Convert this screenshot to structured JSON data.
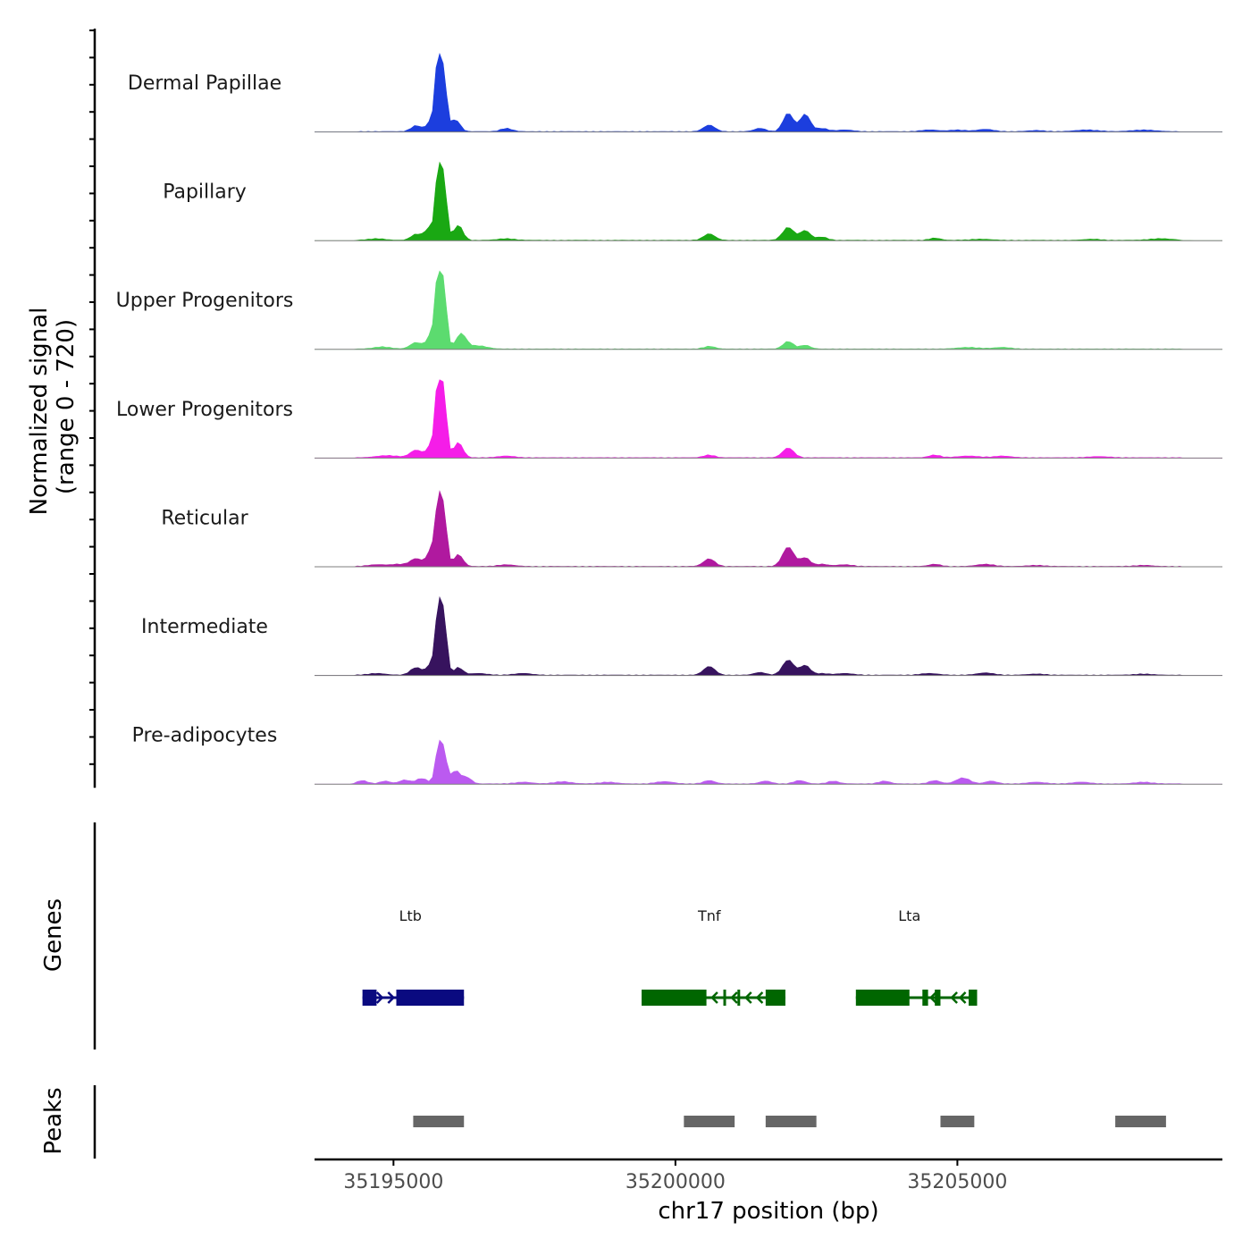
{
  "chart_data": {
    "type": "area",
    "ylabel_line1": "Normalized signal",
    "ylabel_line2": "(range 0 - 720)",
    "xlabel": "chr17 position (bp)",
    "ylim": [
      0,
      720
    ],
    "xlim": [
      35193600,
      35209700
    ],
    "x_ticks": [
      {
        "value": 35195000,
        "label": "35195000"
      },
      {
        "value": 35200000,
        "label": "35200000"
      },
      {
        "value": 35205000,
        "label": "35205000"
      }
    ],
    "genes_label": "Genes",
    "peaks_label": "Peaks",
    "tracks": [
      {
        "name": "Dermal Papillae",
        "color": "#1c3ede",
        "peaks": [
          [
            35195400,
            55,
            90
          ],
          [
            35195700,
            120,
            90
          ],
          [
            35195800,
            720,
            50
          ],
          [
            35195900,
            450,
            50
          ],
          [
            35196100,
            110,
            80
          ],
          [
            35197000,
            30,
            100
          ],
          [
            35200600,
            60,
            100
          ],
          [
            35201500,
            30,
            100
          ],
          [
            35202000,
            170,
            90
          ],
          [
            35202300,
            160,
            90
          ],
          [
            35202600,
            30,
            100
          ],
          [
            35203000,
            15,
            150
          ],
          [
            35204500,
            15,
            150
          ],
          [
            35205000,
            15,
            150
          ],
          [
            35205500,
            20,
            150
          ],
          [
            35206400,
            10,
            150
          ],
          [
            35207300,
            15,
            200
          ],
          [
            35208300,
            15,
            200
          ]
        ]
      },
      {
        "name": "Papillary",
        "color": "#1aa813",
        "peaks": [
          [
            35194700,
            15,
            150
          ],
          [
            35195400,
            55,
            90
          ],
          [
            35195650,
            120,
            90
          ],
          [
            35195800,
            690,
            50
          ],
          [
            35195900,
            500,
            50
          ],
          [
            35196150,
            140,
            80
          ],
          [
            35197000,
            15,
            150
          ],
          [
            35200600,
            60,
            100
          ],
          [
            35202000,
            120,
            100
          ],
          [
            35202300,
            90,
            90
          ],
          [
            35202600,
            30,
            100
          ],
          [
            35204600,
            20,
            100
          ],
          [
            35205400,
            10,
            200
          ],
          [
            35207400,
            10,
            150
          ],
          [
            35208600,
            15,
            200
          ]
        ]
      },
      {
        "name": "Upper Progenitors",
        "color": "#5cdb6f",
        "peaks": [
          [
            35194800,
            20,
            150
          ],
          [
            35195400,
            60,
            100
          ],
          [
            35195700,
            160,
            90
          ],
          [
            35195800,
            700,
            50
          ],
          [
            35195900,
            500,
            50
          ],
          [
            35196200,
            140,
            90
          ],
          [
            35196500,
            30,
            150
          ],
          [
            35200600,
            25,
            100
          ],
          [
            35202000,
            70,
            90
          ],
          [
            35202300,
            35,
            90
          ],
          [
            35205200,
            15,
            200
          ],
          [
            35205800,
            15,
            150
          ]
        ]
      },
      {
        "name": "Lower Progenitors",
        "color": "#f51de8",
        "peaks": [
          [
            35194900,
            20,
            200
          ],
          [
            35195400,
            70,
            100
          ],
          [
            35195700,
            140,
            90
          ],
          [
            35195800,
            730,
            50
          ],
          [
            35195900,
            520,
            50
          ],
          [
            35196150,
            140,
            80
          ],
          [
            35197000,
            15,
            150
          ],
          [
            35200600,
            25,
            100
          ],
          [
            35202000,
            90,
            100
          ],
          [
            35204600,
            25,
            100
          ],
          [
            35205200,
            15,
            200
          ],
          [
            35205800,
            15,
            150
          ],
          [
            35207500,
            10,
            200
          ]
        ]
      },
      {
        "name": "Reticular",
        "color": "#b0199f",
        "peaks": [
          [
            35194700,
            15,
            150
          ],
          [
            35195100,
            20,
            150
          ],
          [
            35195400,
            70,
            100
          ],
          [
            35195700,
            180,
            90
          ],
          [
            35195800,
            530,
            50
          ],
          [
            35195900,
            470,
            50
          ],
          [
            35196150,
            110,
            80
          ],
          [
            35197000,
            15,
            150
          ],
          [
            35200600,
            70,
            100
          ],
          [
            35202000,
            180,
            100
          ],
          [
            35202300,
            80,
            90
          ],
          [
            35202600,
            20,
            100
          ],
          [
            35203000,
            15,
            150
          ],
          [
            35204600,
            20,
            100
          ],
          [
            35205500,
            20,
            150
          ],
          [
            35206400,
            10,
            150
          ],
          [
            35208300,
            10,
            150
          ]
        ]
      },
      {
        "name": "Intermediate",
        "color": "#37135e",
        "peaks": [
          [
            35194700,
            15,
            150
          ],
          [
            35195400,
            70,
            100
          ],
          [
            35195700,
            120,
            90
          ],
          [
            35195800,
            590,
            50
          ],
          [
            35195900,
            500,
            50
          ],
          [
            35196150,
            70,
            80
          ],
          [
            35196500,
            15,
            150
          ],
          [
            35197300,
            15,
            150
          ],
          [
            35200600,
            80,
            100
          ],
          [
            35201500,
            25,
            100
          ],
          [
            35202000,
            140,
            100
          ],
          [
            35202300,
            90,
            90
          ],
          [
            35202600,
            15,
            100
          ],
          [
            35203000,
            15,
            150
          ],
          [
            35204500,
            15,
            150
          ],
          [
            35205500,
            20,
            150
          ],
          [
            35206400,
            10,
            150
          ],
          [
            35208300,
            10,
            150
          ]
        ]
      },
      {
        "name": "Pre-adipocytes",
        "color": "#bb5af0",
        "peaks": [
          [
            35194450,
            30,
            90
          ],
          [
            35194850,
            25,
            90
          ],
          [
            35195200,
            35,
            90
          ],
          [
            35195500,
            50,
            100
          ],
          [
            35195800,
            350,
            55
          ],
          [
            35195900,
            260,
            50
          ],
          [
            35196100,
            120,
            80
          ],
          [
            35196300,
            60,
            80
          ],
          [
            35197300,
            15,
            150
          ],
          [
            35198000,
            20,
            150
          ],
          [
            35198800,
            15,
            150
          ],
          [
            35199800,
            20,
            150
          ],
          [
            35200600,
            30,
            100
          ],
          [
            35201600,
            25,
            100
          ],
          [
            35202200,
            30,
            100
          ],
          [
            35202800,
            25,
            100
          ],
          [
            35203700,
            25,
            100
          ],
          [
            35204600,
            30,
            100
          ],
          [
            35205100,
            55,
            120
          ],
          [
            35205600,
            25,
            100
          ],
          [
            35206400,
            15,
            150
          ],
          [
            35207200,
            15,
            150
          ],
          [
            35208300,
            15,
            150
          ]
        ]
      }
    ],
    "genes": [
      {
        "name": "Ltb",
        "color": "#0a0a80",
        "start": 35194450,
        "end": 35196250,
        "label_x": 35195300,
        "strand": "+",
        "exons": [
          [
            35194450,
            35194700
          ],
          [
            35195050,
            35196250
          ]
        ],
        "arrows": [
          35194800,
          35195000
        ]
      },
      {
        "name": "Tnf",
        "color": "#006600",
        "start": 35199400,
        "end": 35201950,
        "label_x": 35200600,
        "strand": "-",
        "exons": [
          [
            35199400,
            35200550
          ],
          [
            35200850,
            35200880
          ],
          [
            35201100,
            35201130
          ],
          [
            35201600,
            35201950
          ]
        ],
        "arrows": [
          35200650,
          35201000,
          35201250,
          35201450
        ]
      },
      {
        "name": "Lta",
        "color": "#006600",
        "start": 35203200,
        "end": 35205350,
        "label_x": 35204150,
        "strand": "-",
        "exons": [
          [
            35203200,
            35204150
          ],
          [
            35204380,
            35204480
          ],
          [
            35204600,
            35204700
          ],
          [
            35205200,
            35205350
          ]
        ],
        "arrows": [
          35204530,
          35204900,
          35205050
        ]
      }
    ],
    "peak_regions": [
      [
        35195350,
        35196250
      ],
      [
        35200150,
        35201050
      ],
      [
        35201600,
        35202500
      ],
      [
        35204700,
        35205300
      ],
      [
        35207800,
        35208700
      ]
    ],
    "colors": {
      "axis": "#000000",
      "baseline": "#7f7f7f",
      "peak_region": "#666666",
      "text": "#1a1a1a",
      "tick_text": "#4d4d4d"
    }
  }
}
